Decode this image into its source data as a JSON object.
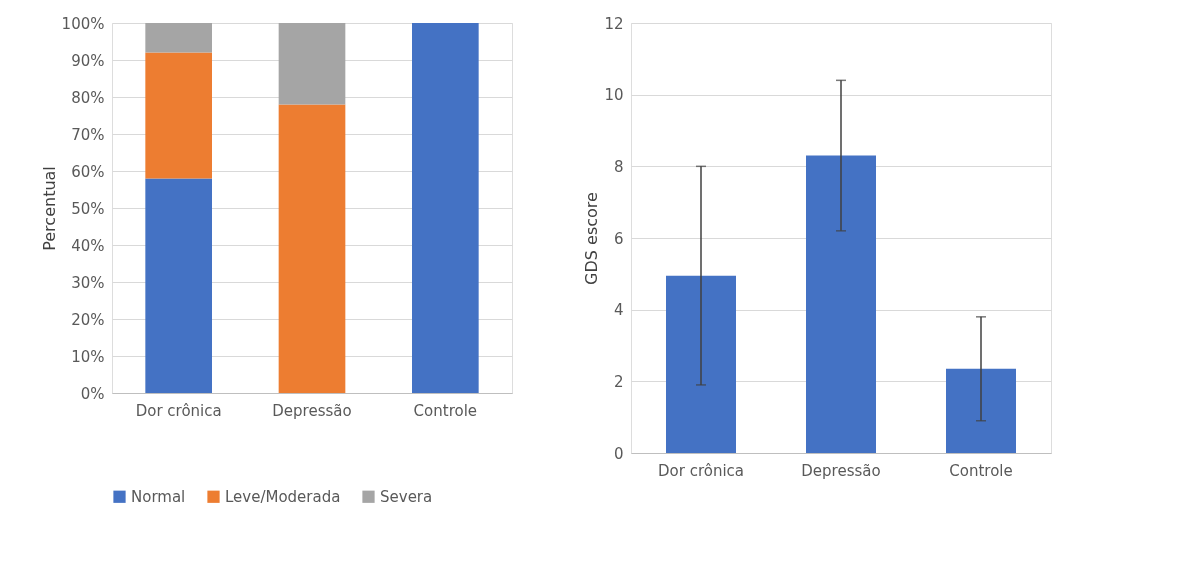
{
  "chart_data": [
    {
      "type": "bar",
      "stacked": true,
      "ylabel": "Percentual",
      "categories": [
        "Dor crônica",
        "Depressão",
        "Controle"
      ],
      "series": [
        {
          "name": "Normal",
          "color": "#4472c4",
          "values": [
            58,
            0,
            100
          ]
        },
        {
          "name": "Leve/Moderada",
          "color": "#ed7d31",
          "values": [
            34,
            78,
            0
          ]
        },
        {
          "name": "Severa",
          "color": "#a5a5a5",
          "values": [
            8,
            22,
            0
          ]
        }
      ],
      "ylim": [
        0,
        100
      ],
      "yticks": [
        {
          "value": 0,
          "label": "0%"
        },
        {
          "value": 10,
          "label": "10%"
        },
        {
          "value": 20,
          "label": "20%"
        },
        {
          "value": 30,
          "label": "30%"
        },
        {
          "value": 40,
          "label": "40%"
        },
        {
          "value": 50,
          "label": "50%"
        },
        {
          "value": 60,
          "label": "60%"
        },
        {
          "value": 70,
          "label": "70%"
        },
        {
          "value": 80,
          "label": "80%"
        },
        {
          "value": 90,
          "label": "90%"
        },
        {
          "value": 100,
          "label": "100%"
        }
      ],
      "grid": "y",
      "legend": "bottom"
    },
    {
      "type": "bar",
      "ylabel": "GDS escore",
      "categories": [
        "Dor crônica",
        "Depressão",
        "Controle"
      ],
      "values": [
        4.95,
        8.3,
        2.35
      ],
      "color": "#4472c4",
      "errors": [
        [
          1.9,
          8.0
        ],
        [
          6.2,
          10.4
        ],
        [
          0.9,
          3.8
        ]
      ],
      "ylim": [
        0,
        12
      ],
      "yticks": [
        0,
        2,
        4,
        6,
        8,
        10,
        12
      ],
      "grid": "y"
    }
  ]
}
